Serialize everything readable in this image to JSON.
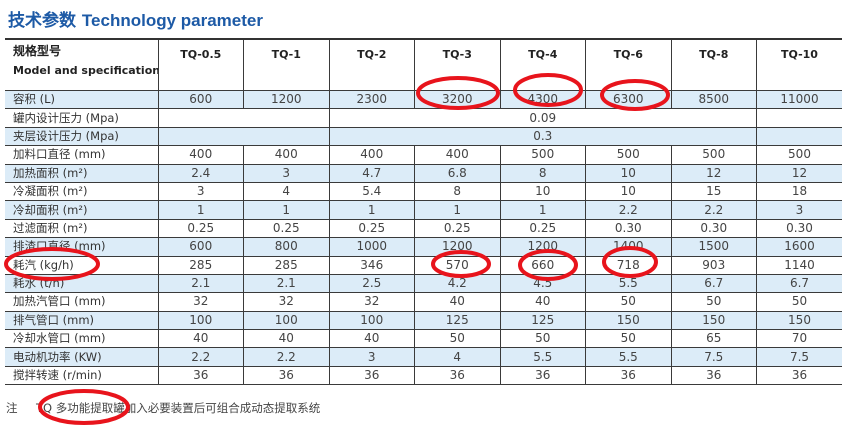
{
  "title": {
    "cn": "技术参数",
    "en": "Technology parameter"
  },
  "table": {
    "header_label_cn": "规格型号",
    "header_label_en": "Model and specification",
    "models": [
      "TQ-0.5",
      "TQ-1",
      "TQ-2",
      "TQ-3",
      "TQ-4",
      "TQ-6",
      "TQ-8",
      "TQ-10"
    ],
    "rows": [
      {
        "label": "容积 (L)",
        "values": [
          "600",
          "1200",
          "2300",
          "3200",
          "4300",
          "6300",
          "8500",
          "11000"
        ]
      },
      {
        "label": "罐内设计压力 (Mpa)",
        "merged_value": "0.09"
      },
      {
        "label": "夹层设计压力 (Mpa)",
        "merged_value": "0.3"
      },
      {
        "label": "加料口直径 (mm)",
        "values": [
          "400",
          "400",
          "400",
          "400",
          "500",
          "500",
          "500",
          "500"
        ]
      },
      {
        "label": "加热面积 (m²)",
        "values": [
          "2.4",
          "3",
          "4.7",
          "6.8",
          "8",
          "10",
          "12",
          "12"
        ]
      },
      {
        "label": "冷凝面积 (m²)",
        "values": [
          "3",
          "4",
          "5.4",
          "8",
          "10",
          "10",
          "15",
          "18"
        ]
      },
      {
        "label": "冷却面积 (m²)",
        "values": [
          "1",
          "1",
          "1",
          "1",
          "1",
          "2.2",
          "2.2",
          "3"
        ]
      },
      {
        "label": "过滤面积 (m²)",
        "values": [
          "0.25",
          "0.25",
          "0.25",
          "0.25",
          "0.25",
          "0.30",
          "0.30",
          "0.30"
        ]
      },
      {
        "label": "排渣口直径 (mm)",
        "values": [
          "600",
          "800",
          "1000",
          "1200",
          "1200",
          "1400",
          "1500",
          "1600"
        ]
      },
      {
        "label": "耗汽 (kg/h)",
        "values": [
          "285",
          "285",
          "346",
          "570",
          "660",
          "718",
          "903",
          "1140"
        ]
      },
      {
        "label": "耗水 (t/h)",
        "values": [
          "2.1",
          "2.1",
          "2.5",
          "4.2",
          "4.5",
          "5.5",
          "6.7",
          "6.7"
        ]
      },
      {
        "label": "加热汽管口 (mm)",
        "values": [
          "32",
          "32",
          "32",
          "40",
          "40",
          "50",
          "50",
          "50"
        ]
      },
      {
        "label": "排气管口 (mm)",
        "values": [
          "100",
          "100",
          "100",
          "125",
          "125",
          "150",
          "150",
          "150"
        ]
      },
      {
        "label": "冷却水管口 (mm)",
        "values": [
          "40",
          "40",
          "40",
          "50",
          "50",
          "50",
          "65",
          "70"
        ]
      },
      {
        "label": "电动机功率 (KW)",
        "values": [
          "2.2",
          "2.2",
          "3",
          "4",
          "5.5",
          "5.5",
          "7.5",
          "7.5"
        ]
      },
      {
        "label": "搅拌转速 (r/min)",
        "values": [
          "36",
          "36",
          "36",
          "36",
          "36",
          "36",
          "36",
          "36"
        ]
      }
    ]
  },
  "note": {
    "label": "注",
    "text": "TQ 多功能提取罐加入必要装置后可组合成动态提取系统"
  },
  "colors": {
    "title": "#1d5aa6",
    "row_alt": "#dcecf8",
    "annotation": "#e8141c"
  }
}
